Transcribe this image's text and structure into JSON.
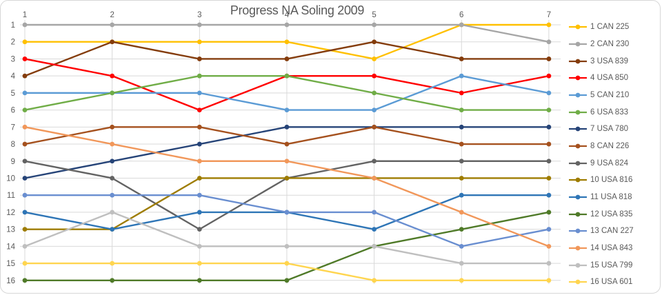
{
  "chart_data": {
    "type": "line",
    "title": "Progress NA Soling 2009",
    "x_tick_labels": [
      "1",
      "2",
      "3",
      "4",
      "5",
      "6",
      "7"
    ],
    "y_tick_labels": [
      "1",
      "2",
      "3",
      "4",
      "5",
      "6",
      "7",
      "8",
      "9",
      "10",
      "11",
      "12",
      "13",
      "14",
      "15",
      "16"
    ],
    "y_axis_inverted": true,
    "ylim": [
      1,
      16
    ],
    "grid": true,
    "legend_position": "right",
    "axis_text_color": "#595959",
    "gridline_color": "#d9d9d9",
    "series": [
      {
        "name": "1 CAN 225",
        "color": "#FFC000",
        "values": [
          2,
          2,
          2,
          2,
          3,
          1,
          1
        ]
      },
      {
        "name": "2 CAN 230",
        "color": "#A6A6A6",
        "values": [
          1,
          1,
          1,
          1,
          1,
          1,
          2
        ]
      },
      {
        "name": "3 USA 839",
        "color": "#843C0C",
        "values": [
          4,
          2,
          3,
          3,
          2,
          3,
          3
        ]
      },
      {
        "name": "4 USA 850",
        "color": "#FF0000",
        "values": [
          3,
          4,
          6,
          4,
          4,
          5,
          4
        ]
      },
      {
        "name": "5 CAN 210",
        "color": "#5B9BD5",
        "values": [
          5,
          5,
          5,
          6,
          6,
          4,
          5
        ]
      },
      {
        "name": "6 USA 833",
        "color": "#70AD47",
        "values": [
          6,
          5,
          4,
          4,
          5,
          6,
          6
        ]
      },
      {
        "name": "7 USA 780",
        "color": "#264478",
        "values": [
          10,
          9,
          8,
          7,
          7,
          7,
          7
        ]
      },
      {
        "name": "8 CAN 226",
        "color": "#A5511E",
        "values": [
          8,
          7,
          7,
          8,
          7,
          8,
          8
        ]
      },
      {
        "name": "9 USA 824",
        "color": "#636363",
        "values": [
          9,
          10,
          13,
          10,
          9,
          9,
          9
        ]
      },
      {
        "name": "10 USA 816",
        "color": "#9E7C00",
        "values": [
          13,
          13,
          10,
          10,
          10,
          10,
          10
        ]
      },
      {
        "name": "11 USA 818",
        "color": "#2E75B6",
        "values": [
          12,
          13,
          12,
          12,
          13,
          11,
          11
        ]
      },
      {
        "name": "12 USA 835",
        "color": "#4F7A28",
        "values": [
          16,
          16,
          16,
          16,
          14,
          13,
          12
        ]
      },
      {
        "name": "13 CAN 227",
        "color": "#698ED0",
        "values": [
          11,
          11,
          11,
          12,
          12,
          14,
          13
        ]
      },
      {
        "name": "14 USA 843",
        "color": "#F1975A",
        "values": [
          7,
          8,
          9,
          9,
          10,
          12,
          14
        ]
      },
      {
        "name": "15 USA 799",
        "color": "#BFBFBF",
        "values": [
          14,
          12,
          14,
          14,
          14,
          15,
          15
        ]
      },
      {
        "name": "16 USA 601",
        "color": "#FFD54F",
        "values": [
          15,
          15,
          15,
          15,
          16,
          16,
          16
        ]
      }
    ]
  }
}
